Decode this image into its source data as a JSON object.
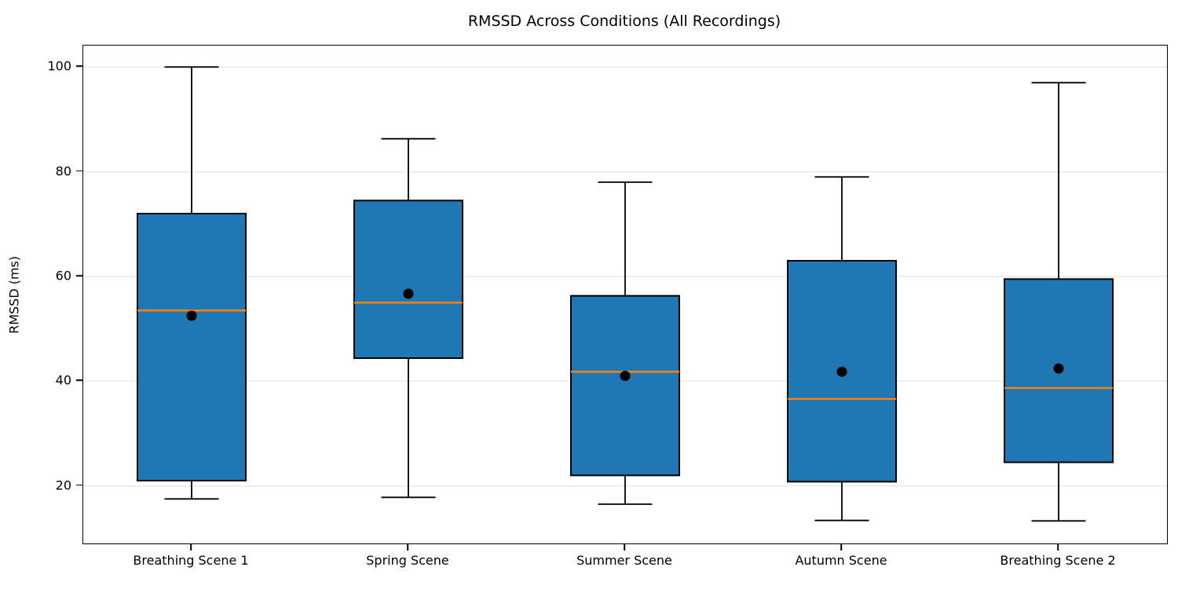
{
  "figure": {
    "title": "RMSSD Across Conditions (All Recordings)",
    "ylabel": "RMSSD (ms)"
  },
  "colors": {
    "box_fill": "#1f77b4",
    "box_edge": "#000000",
    "median_line": "#ff7f0e",
    "mean_marker": "#000000",
    "whisker": "#000000",
    "grid": "#e8e8e8",
    "background": "#ffffff",
    "text": "#000000"
  },
  "chart_data": {
    "type": "boxplot",
    "title": "RMSSD Across Conditions (All Recordings)",
    "xlabel": "",
    "ylabel": "RMSSD (ms)",
    "categories": [
      "Breathing Scene 1",
      "Spring Scene",
      "Summer Scene",
      "Autumn Scene",
      "Breathing Scene 2"
    ],
    "yticks": [
      20,
      40,
      60,
      80,
      100
    ],
    "ylim": [
      9.0,
      104.1
    ],
    "grid": "horizontal-light",
    "legend": "none",
    "marker_notes": "orange line = median, black dot = mean, boxes filled steel blue with black edges",
    "series": [
      {
        "name": "Breathing Scene 1",
        "whisker_low": 17.5,
        "q1": 21.0,
        "median": 53.5,
        "mean": 52.5,
        "q3": 72.0,
        "whisker_high": 100.0
      },
      {
        "name": "Spring Scene",
        "whisker_low": 17.8,
        "q1": 44.4,
        "median": 55.0,
        "mean": 56.7,
        "q3": 74.5,
        "whisker_high": 86.3
      },
      {
        "name": "Summer Scene",
        "whisker_low": 16.5,
        "q1": 22.0,
        "median": 41.8,
        "mean": 41.0,
        "q3": 56.3,
        "whisker_high": 78.0
      },
      {
        "name": "Autumn Scene",
        "whisker_low": 13.4,
        "q1": 20.8,
        "median": 36.6,
        "mean": 41.8,
        "q3": 63.0,
        "whisker_high": 79.0
      },
      {
        "name": "Breathing Scene 2",
        "whisker_low": 13.3,
        "q1": 24.5,
        "median": 38.7,
        "mean": 42.4,
        "q3": 59.5,
        "whisker_high": 97.0
      }
    ]
  }
}
